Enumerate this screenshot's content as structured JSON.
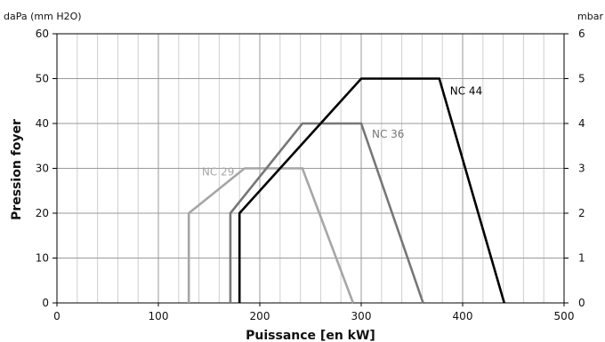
{
  "chart_data": {
    "type": "line",
    "xlabel": "Puissance [en kW]",
    "ylabel": "Pression foyer",
    "y_unit_left": "daPa (mm H2O)",
    "y_unit_right": "mbar",
    "xlim": [
      0,
      500
    ],
    "ylim": [
      0,
      60
    ],
    "y2lim": [
      0,
      6
    ],
    "x_ticks": [
      0,
      100,
      200,
      300,
      400,
      500
    ],
    "y_ticks": [
      0,
      10,
      20,
      30,
      40,
      50,
      60
    ],
    "y2_ticks": [
      0,
      1,
      2,
      3,
      4,
      5,
      6
    ],
    "grid": true,
    "series": [
      {
        "name": "NC 29",
        "color": "#a6a6a6",
        "x": [
          130,
          130,
          185,
          242,
          292
        ],
        "y": [
          0,
          20,
          30,
          30,
          0
        ]
      },
      {
        "name": "NC 36",
        "color": "#777777",
        "x": [
          171,
          171,
          242,
          300,
          361
        ],
        "y": [
          0,
          20,
          40,
          40,
          0
        ]
      },
      {
        "name": "NC 44",
        "color": "#000000",
        "x": [
          180,
          180,
          300,
          377,
          441
        ],
        "y": [
          0,
          20,
          50,
          50,
          0
        ]
      }
    ]
  }
}
